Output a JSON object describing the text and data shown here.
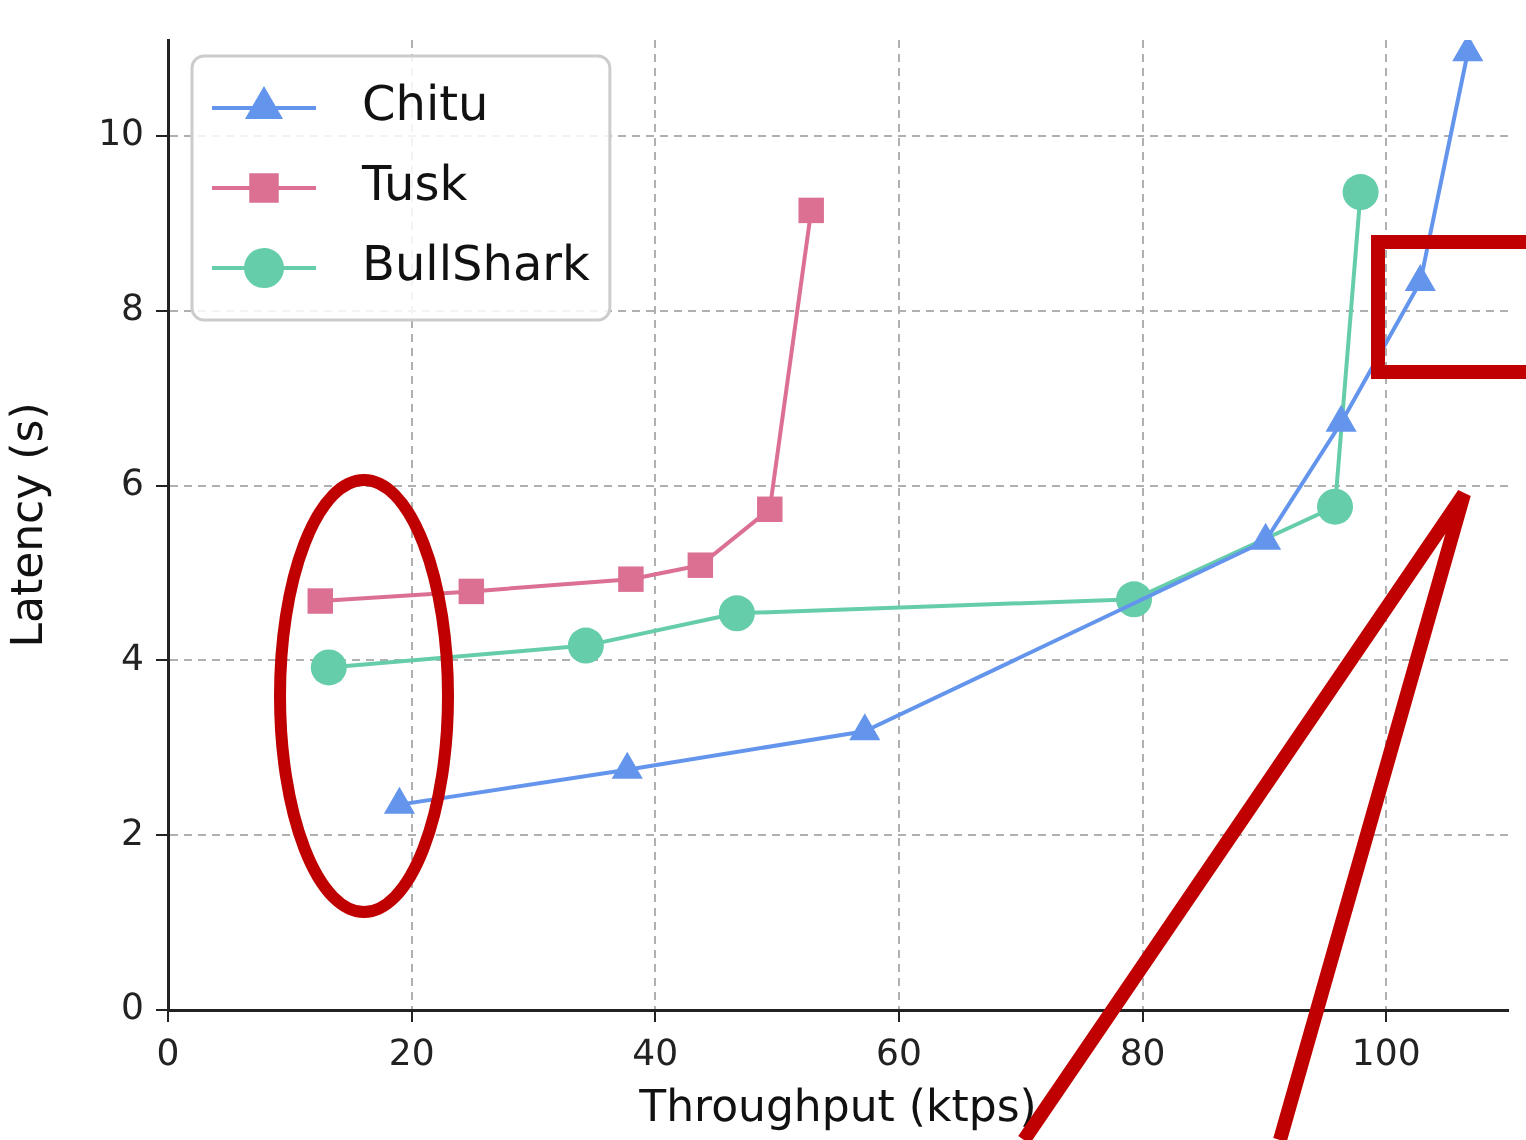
{
  "chart_data": {
    "type": "line",
    "xlabel": "Throughput (ktps)",
    "ylabel": "Latency (s)",
    "xlim": [
      0,
      110
    ],
    "xticks": [
      0,
      20,
      40,
      60,
      80,
      100
    ],
    "ylim": [
      0,
      11.1
    ],
    "yticks": [
      0,
      2,
      4,
      6,
      8,
      10
    ],
    "grid": true,
    "legend": "top left",
    "line_style": "solid",
    "series": [
      {
        "name": "Chitu",
        "color": "#6495ed",
        "marker": "triangle",
        "x": [
          19.0,
          37.7,
          57.2,
          90.1,
          96.3,
          102.8,
          106.7
        ],
        "values": [
          2.35,
          2.75,
          3.19,
          5.37,
          6.72,
          8.33,
          10.96
        ]
      },
      {
        "name": "Tusk",
        "color": "#db7093",
        "marker": "square",
        "x": [
          12.5,
          24.9,
          38.0,
          43.7,
          49.4,
          52.8
        ],
        "values": [
          4.68,
          4.79,
          4.93,
          5.09,
          5.73,
          9.15
        ]
      },
      {
        "name": "BullShark",
        "color": "#66cdaa",
        "marker": "circle",
        "x": [
          13.2,
          34.3,
          46.7,
          79.3,
          95.8,
          97.9
        ],
        "values": [
          3.92,
          4.17,
          4.54,
          4.7,
          5.76,
          9.36
        ]
      }
    ]
  }
}
